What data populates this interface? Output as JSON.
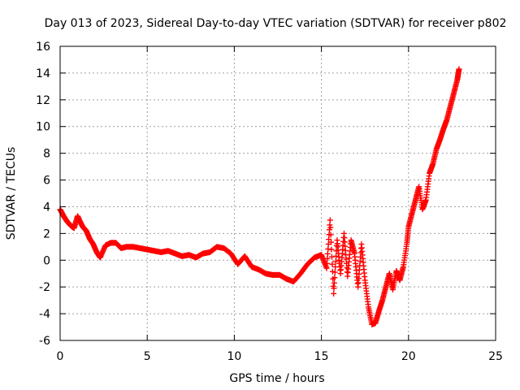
{
  "chart_data": {
    "type": "scatter",
    "title": "Day 013 of 2023, Sidereal Day-to-day VTEC variation (SDTVAR) for receiver p802",
    "xlabel": "GPS time / hours",
    "ylabel": "SDTVAR / TECUs",
    "xlim": [
      0,
      25
    ],
    "ylim": [
      -6,
      16
    ],
    "xticks": [
      0,
      5,
      10,
      15,
      20,
      25
    ],
    "yticks": [
      -6,
      -4,
      -2,
      0,
      2,
      4,
      6,
      8,
      10,
      12,
      14,
      16
    ],
    "grid": true,
    "marker": "+",
    "marker_color": "#ff0000",
    "series": [
      {
        "name": "SDTVAR",
        "x": [
          0.0,
          0.2,
          0.4,
          0.6,
          0.8,
          1.0,
          1.1,
          1.3,
          1.5,
          1.7,
          1.9,
          2.1,
          2.3,
          2.6,
          2.9,
          3.2,
          3.5,
          3.8,
          4.2,
          4.6,
          5.0,
          5.4,
          5.8,
          6.2,
          6.6,
          7.0,
          7.4,
          7.8,
          8.2,
          8.6,
          9.0,
          9.4,
          9.8,
          10.2,
          10.6,
          11.0,
          11.4,
          11.8,
          12.2,
          12.6,
          13.0,
          13.4,
          13.8,
          14.2,
          14.6,
          15.0,
          15.3,
          15.5,
          15.7,
          15.9,
          16.1,
          16.3,
          16.5,
          16.7,
          16.9,
          17.1,
          17.3,
          17.5,
          17.7,
          17.9,
          18.1,
          18.3,
          18.5,
          18.7,
          18.9,
          19.1,
          19.3,
          19.5,
          19.7,
          19.9,
          20.0,
          20.2,
          20.4,
          20.6,
          20.8,
          21.0,
          21.2,
          21.4,
          21.6,
          21.8,
          22.0,
          22.2,
          22.4,
          22.6,
          22.8,
          22.9
        ],
        "y": [
          3.8,
          3.3,
          2.9,
          2.6,
          2.4,
          3.3,
          3.0,
          2.5,
          2.2,
          1.6,
          1.2,
          0.6,
          0.2,
          1.1,
          1.3,
          1.3,
          0.9,
          1.0,
          1.0,
          0.9,
          0.8,
          0.7,
          0.6,
          0.7,
          0.5,
          0.3,
          0.4,
          0.2,
          0.5,
          0.6,
          1.0,
          0.9,
          0.5,
          -0.3,
          0.3,
          -0.5,
          -0.7,
          -1.0,
          -1.1,
          -1.1,
          -1.4,
          -1.6,
          -1.0,
          -0.3,
          0.2,
          0.4,
          -0.6,
          3.0,
          -2.5,
          1.5,
          -1.0,
          2.0,
          -1.2,
          1.5,
          0.5,
          -2.0,
          1.2,
          -1.5,
          -3.5,
          -4.8,
          -4.7,
          -3.8,
          -3.0,
          -2.0,
          -1.0,
          -2.2,
          -0.8,
          -1.5,
          -0.5,
          1.2,
          2.5,
          3.5,
          4.5,
          5.5,
          3.8,
          4.5,
          6.5,
          7.2,
          8.3,
          9.0,
          9.8,
          10.5,
          11.5,
          12.5,
          13.5,
          14.3
        ]
      }
    ]
  }
}
